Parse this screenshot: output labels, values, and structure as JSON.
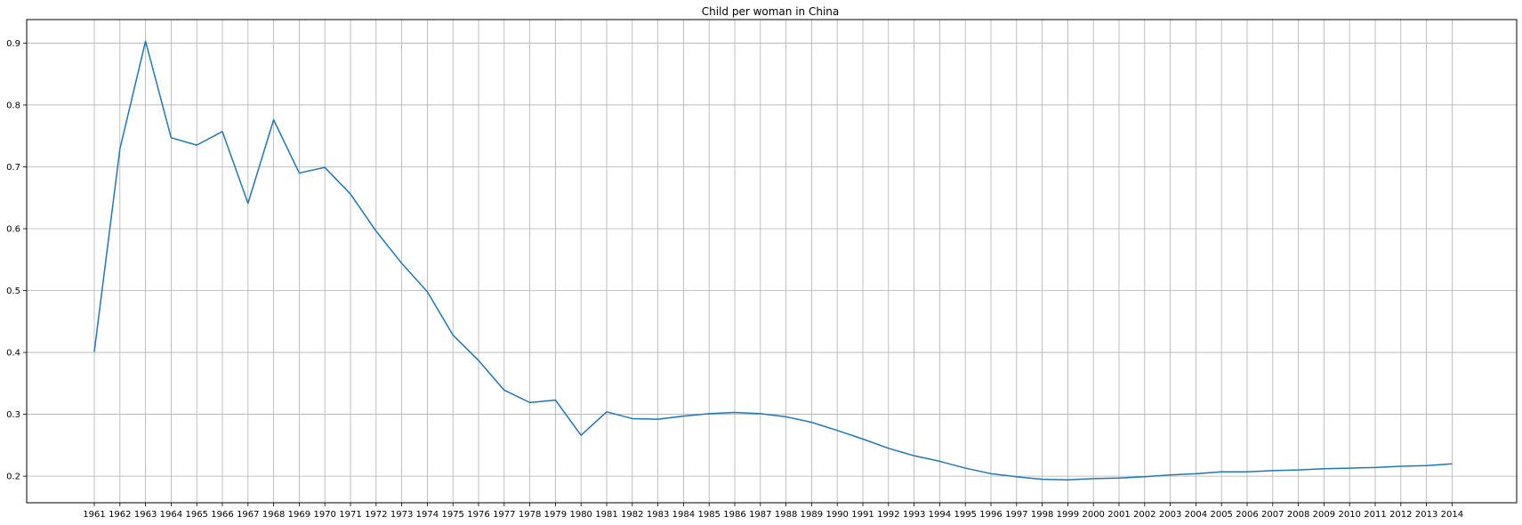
{
  "chart_data": {
    "type": "line",
    "title": "Child per woman in China",
    "xlabel": "",
    "ylabel": "",
    "x": [
      "1961",
      "1962",
      "1963",
      "1964",
      "1965",
      "1966",
      "1967",
      "1968",
      "1969",
      "1970",
      "1971",
      "1972",
      "1973",
      "1974",
      "1975",
      "1976",
      "1977",
      "1978",
      "1979",
      "1980",
      "1981",
      "1982",
      "1983",
      "1984",
      "1985",
      "1986",
      "1987",
      "1988",
      "1989",
      "1990",
      "1991",
      "1992",
      "1993",
      "1994",
      "1995",
      "1996",
      "1997",
      "1998",
      "1999",
      "2000",
      "2001",
      "2002",
      "2003",
      "2004",
      "2005",
      "2006",
      "2007",
      "2008",
      "2009",
      "2010",
      "2011",
      "2012",
      "2013",
      "2014"
    ],
    "series": [
      {
        "values": [
          0.401,
          0.729,
          0.903,
          0.747,
          0.735,
          0.757,
          0.641,
          0.776,
          0.69,
          0.699,
          0.656,
          0.596,
          0.544,
          0.498,
          0.428,
          0.387,
          0.339,
          0.319,
          0.323,
          0.266,
          0.304,
          0.293,
          0.292,
          0.297,
          0.301,
          0.303,
          0.301,
          0.296,
          0.287,
          0.274,
          0.26,
          0.245,
          0.233,
          0.224,
          0.213,
          0.204,
          0.199,
          0.195,
          0.194,
          0.196,
          0.197,
          0.199,
          0.202,
          0.204,
          0.207,
          0.207,
          0.209,
          0.21,
          0.212,
          0.213,
          0.214,
          0.216,
          0.217,
          0.22
        ]
      }
    ],
    "yticks": [
      0.2,
      0.3,
      0.4,
      0.5,
      0.6,
      0.7,
      0.8,
      0.9
    ],
    "ylim": [
      0.157,
      0.938
    ],
    "grid": true,
    "line_color": "#1f77b4",
    "grid_color": "#b0b0b0"
  }
}
